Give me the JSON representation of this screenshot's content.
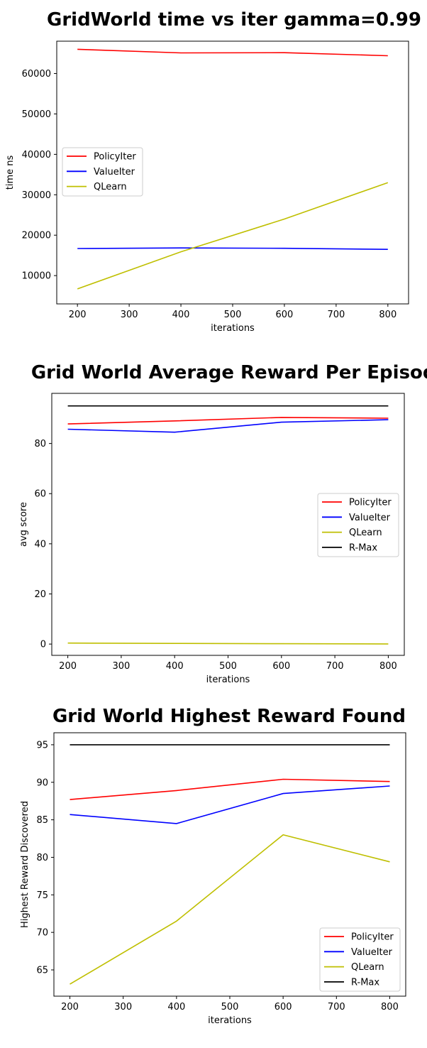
{
  "chart_data": [
    {
      "type": "line",
      "title": "GridWorld time vs iter  gamma=0.99",
      "xlabel": "iterations",
      "ylabel": "time ns",
      "x": [
        200,
        400,
        600,
        800
      ],
      "xlim": [
        160,
        840
      ],
      "ylim": [
        3000,
        68000
      ],
      "xticks": [
        200,
        300,
        400,
        500,
        600,
        700,
        800
      ],
      "yticks": [
        10000,
        20000,
        30000,
        40000,
        50000,
        60000
      ],
      "legend_position": "center-left",
      "series": [
        {
          "name": "PolicyIter",
          "color": "#ff0000",
          "values": [
            66000,
            65100,
            65150,
            64400
          ]
        },
        {
          "name": "ValueIter",
          "color": "#0000ff",
          "values": [
            16700,
            16850,
            16750,
            16500
          ]
        },
        {
          "name": "QLearn",
          "color": "#bfbf00",
          "values": [
            6700,
            15900,
            24000,
            33000
          ]
        }
      ]
    },
    {
      "type": "line",
      "title": "Grid World Average Reward Per Episode",
      "xlabel": "iterations",
      "ylabel": "avg score",
      "x": [
        200,
        400,
        600,
        800
      ],
      "xlim": [
        170,
        830
      ],
      "ylim": [
        -4.5,
        100
      ],
      "xticks": [
        200,
        300,
        400,
        500,
        600,
        700,
        800
      ],
      "yticks": [
        0,
        20,
        40,
        60,
        80
      ],
      "legend_position": "center-right",
      "series": [
        {
          "name": "PolicyIter",
          "color": "#ff0000",
          "values": [
            87.8,
            89,
            90.4,
            90.1
          ]
        },
        {
          "name": "ValueIter",
          "color": "#0000ff",
          "values": [
            85.7,
            84.5,
            88.5,
            89.5
          ]
        },
        {
          "name": "QLearn",
          "color": "#bfbf00",
          "values": [
            0.4,
            0.25,
            0.15,
            0.05
          ]
        },
        {
          "name": "R-Max",
          "color": "#000000",
          "values": [
            95,
            95,
            95,
            95
          ]
        }
      ]
    },
    {
      "type": "line",
      "title": "Grid World Highest Reward Found",
      "xlabel": "iterations",
      "ylabel": "Highest Reward Discovered",
      "x": [
        200,
        400,
        600,
        800
      ],
      "xlim": [
        170,
        830
      ],
      "ylim": [
        61.5,
        96.6
      ],
      "xticks": [
        200,
        300,
        400,
        500,
        600,
        700,
        800
      ],
      "yticks": [
        65,
        70,
        75,
        80,
        85,
        90,
        95
      ],
      "legend_position": "lower-right",
      "series": [
        {
          "name": "PolicyIter",
          "color": "#ff0000",
          "values": [
            87.7,
            88.9,
            90.4,
            90.1
          ]
        },
        {
          "name": "ValueIter",
          "color": "#0000ff",
          "values": [
            85.7,
            84.5,
            88.5,
            89.5
          ]
        },
        {
          "name": "QLearn",
          "color": "#bfbf00",
          "values": [
            63.1,
            71.5,
            83,
            79.4
          ]
        },
        {
          "name": "R-Max",
          "color": "#000000",
          "values": [
            95,
            95,
            95,
            95
          ]
        }
      ]
    }
  ]
}
